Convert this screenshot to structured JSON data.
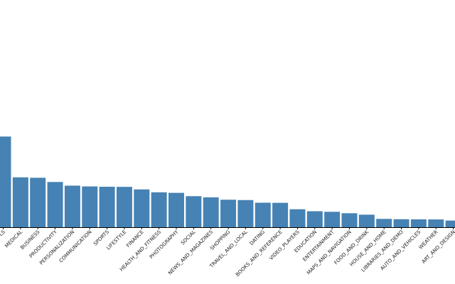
{
  "chart_data": {
    "type": "bar",
    "title": "",
    "xlabel": "",
    "ylabel": "",
    "bar_color": "#4682b4",
    "categories": [
      "TOOLS",
      "MEDICAL",
      "BUSINESS",
      "PRODUCTIVITY",
      "PERSONALIZATION",
      "COMMUNICATION",
      "SPORTS",
      "LIFESTYLE",
      "FINANCE",
      "HEALTH_AND_FITNESS",
      "PHOTOGRAPHY",
      "SOCIAL",
      "NEWS_AND_MAGAZINES",
      "SHOPPING",
      "TRAVEL_AND_LOCAL",
      "DATING",
      "BOOKS_AND_REFERENCE",
      "VIDEO_PLAYERS",
      "EDUCATION",
      "ENTERTAINMENT",
      "MAPS_AND_NAVIGATION",
      "FOOD_AND_DRINK",
      "HOUSE_AND_HOME",
      "LIBRARIES_AND_DEMO",
      "AUTO_AND_VEHICLES",
      "WEATHER",
      "ART_AND_DESIGN"
    ],
    "category_label_visible": [
      "LS",
      "MEDICAL",
      "BUSINESS",
      "PRODUCTIVITY",
      "PERSONALIZATION",
      "COMMUNICATION",
      "SPORTS",
      "LIFESTYLE",
      "FINANCE",
      "HEALTH_AND_FITNESS",
      "PHOTOGRAPHY",
      "SOCIAL",
      "NEWS_AND_MAGAZINES",
      "SHOPPING",
      "TRAVEL_AND_LOCAL",
      "DATING",
      "BOOKS_AND_REFERENCE",
      "VIDEO_PLAYERS",
      "EDUCATION",
      "ENTERTAINMENT",
      "MAPS_AND_NAVIGATION",
      "FOOD_AND_DRINK",
      "HOUSE_AND_HOME",
      "LIBRARIES_AND_DEMO",
      "AUTO_AND_VEHICLES",
      "WEATHER",
      "ART_AND_DESIGN"
    ],
    "values": [
      818,
      450,
      446,
      408,
      375,
      368,
      365,
      364,
      341,
      315,
      310,
      280,
      269,
      248,
      245,
      221,
      220,
      162,
      144,
      139,
      126,
      113,
      75,
      72,
      71,
      70,
      60
    ],
    "ylim": [
      0,
      2050
    ]
  }
}
